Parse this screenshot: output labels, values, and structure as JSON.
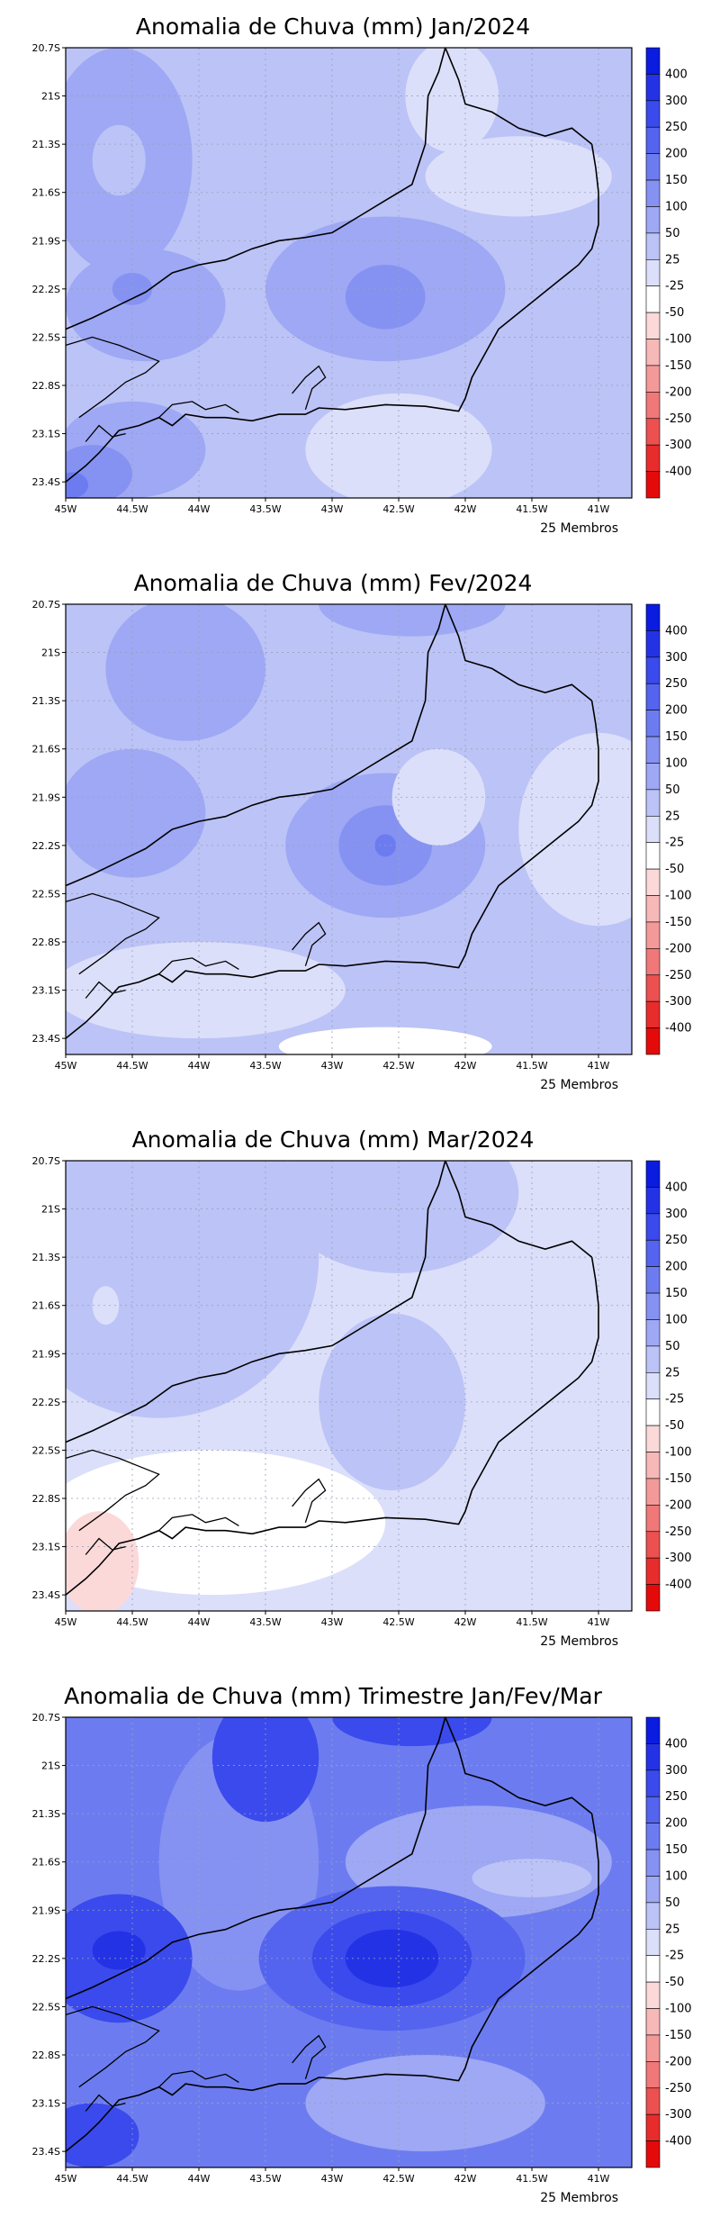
{
  "colorbar": {
    "labels": [
      "400",
      "300",
      "250",
      "200",
      "150",
      "100",
      "50",
      "25",
      "-25",
      "-50",
      "-100",
      "-150",
      "-200",
      "-250",
      "-300",
      "-400"
    ],
    "colors": [
      "#0a1ce0",
      "#2432e6",
      "#3a4aec",
      "#5464ef",
      "#6c7cf0",
      "#8592f2",
      "#9ea8f4",
      "#bcc3f6",
      "#dcdffa",
      "#ffffff",
      "#fcd9d9",
      "#f7b8b8",
      "#f49999",
      "#f07878",
      "#ec5050",
      "#e82c2c",
      "#e40a0a"
    ]
  },
  "axes": {
    "lon_labels": [
      "45W",
      "44.5W",
      "44W",
      "43.5W",
      "43W",
      "42.5W",
      "42W",
      "41.5W",
      "41W"
    ],
    "lat_labels": [
      "20.7S",
      "21S",
      "21.3S",
      "21.6S",
      "21.9S",
      "22.2S",
      "22.5S",
      "22.8S",
      "23.1S",
      "23.4S"
    ]
  },
  "panels": [
    {
      "title": "Anomalia de Chuva (mm) Jan/2024",
      "members": "25 Membros",
      "base_color": "#bcc3f6",
      "blobs": [
        {
          "lon": -44.6,
          "lat": -21.4,
          "rx": 0.55,
          "ry": 0.7,
          "color": "#9ea8f4"
        },
        {
          "lon": -44.6,
          "lat": -21.4,
          "rx": 0.2,
          "ry": 0.22,
          "color": "#bcc3f6"
        },
        {
          "lon": -44.4,
          "lat": -22.3,
          "rx": 0.6,
          "ry": 0.35,
          "color": "#9ea8f4"
        },
        {
          "lon": -44.5,
          "lat": -22.2,
          "rx": 0.15,
          "ry": 0.1,
          "color": "#8592f2"
        },
        {
          "lon": -42.6,
          "lat": -22.2,
          "rx": 0.9,
          "ry": 0.45,
          "color": "#9ea8f4"
        },
        {
          "lon": -42.6,
          "lat": -22.25,
          "rx": 0.3,
          "ry": 0.2,
          "color": "#8592f2"
        },
        {
          "lon": -41.6,
          "lat": -21.5,
          "rx": 0.7,
          "ry": 0.25,
          "color": "#dcdffa"
        },
        {
          "lon": -42.1,
          "lat": -21.0,
          "rx": 0.35,
          "ry": 0.35,
          "color": "#dcdffa"
        },
        {
          "lon": -44.5,
          "lat": -23.2,
          "rx": 0.55,
          "ry": 0.3,
          "color": "#9ea8f4"
        },
        {
          "lon": -44.8,
          "lat": -23.35,
          "rx": 0.3,
          "ry": 0.18,
          "color": "#8592f2"
        },
        {
          "lon": -44.95,
          "lat": -23.42,
          "rx": 0.12,
          "ry": 0.08,
          "color": "#6c7cf0"
        },
        {
          "lon": -42.5,
          "lat": -23.2,
          "rx": 0.7,
          "ry": 0.35,
          "color": "#dcdffa"
        }
      ]
    },
    {
      "title": "Anomalia de Chuva (mm) Fev/2024",
      "members": "25 Membros",
      "base_color": "#bcc3f6",
      "blobs": [
        {
          "lon": -44.5,
          "lat": -22.0,
          "rx": 0.55,
          "ry": 0.4,
          "color": "#9ea8f4"
        },
        {
          "lon": -42.6,
          "lat": -22.2,
          "rx": 0.75,
          "ry": 0.45,
          "color": "#9ea8f4"
        },
        {
          "lon": -42.6,
          "lat": -22.2,
          "rx": 0.35,
          "ry": 0.25,
          "color": "#8592f2"
        },
        {
          "lon": -42.6,
          "lat": -22.2,
          "rx": 0.08,
          "ry": 0.07,
          "color": "#6c7cf0"
        },
        {
          "lon": -44.1,
          "lat": -21.1,
          "rx": 0.6,
          "ry": 0.45,
          "color": "#9ea8f4"
        },
        {
          "lon": -42.4,
          "lat": -20.7,
          "rx": 0.7,
          "ry": 0.2,
          "color": "#9ea8f4"
        },
        {
          "lon": -42.2,
          "lat": -21.9,
          "rx": 0.35,
          "ry": 0.3,
          "color": "#dcdffa"
        },
        {
          "lon": -41.0,
          "lat": -22.1,
          "rx": 0.6,
          "ry": 0.6,
          "color": "#dcdffa"
        },
        {
          "lon": -44.0,
          "lat": -23.1,
          "rx": 1.1,
          "ry": 0.3,
          "color": "#dcdffa"
        },
        {
          "lon": -42.6,
          "lat": -23.45,
          "rx": 0.8,
          "ry": 0.12,
          "color": "#ffffff"
        }
      ]
    },
    {
      "title": "Anomalia de Chuva (mm) Mar/2024",
      "members": "25 Membros",
      "base_color": "#dcdffa",
      "blobs": [
        {
          "lon": -44.3,
          "lat": -21.3,
          "rx": 1.2,
          "ry": 1.0,
          "color": "#bcc3f6"
        },
        {
          "lon": -42.5,
          "lat": -20.9,
          "rx": 0.9,
          "ry": 0.5,
          "color": "#bcc3f6"
        },
        {
          "lon": -42.55,
          "lat": -22.2,
          "rx": 0.55,
          "ry": 0.55,
          "color": "#bcc3f6"
        },
        {
          "lon": -44.7,
          "lat": -21.6,
          "rx": 0.1,
          "ry": 0.12,
          "color": "#dcdffa"
        },
        {
          "lon": -43.9,
          "lat": -22.95,
          "rx": 1.3,
          "ry": 0.45,
          "color": "#ffffff"
        },
        {
          "lon": -44.75,
          "lat": -23.2,
          "rx": 0.3,
          "ry": 0.32,
          "color": "#fcd9d9"
        }
      ]
    },
    {
      "title": "Anomalia de Chuva (mm) Trimestre Jan/Fev/Mar",
      "members": "25 Membros",
      "base_color": "#6c7cf0",
      "blobs": [
        {
          "lon": -43.7,
          "lat": -21.6,
          "rx": 0.6,
          "ry": 0.8,
          "color": "#8592f2"
        },
        {
          "lon": -41.9,
          "lat": -21.6,
          "rx": 1.0,
          "ry": 0.35,
          "color": "#9ea8f4"
        },
        {
          "lon": -41.5,
          "lat": -21.7,
          "rx": 0.45,
          "ry": 0.12,
          "color": "#bcc3f6"
        },
        {
          "lon": -42.3,
          "lat": -23.1,
          "rx": 0.9,
          "ry": 0.3,
          "color": "#9ea8f4"
        },
        {
          "lon": -43.5,
          "lat": -20.95,
          "rx": 0.4,
          "ry": 0.4,
          "color": "#3a4aec"
        },
        {
          "lon": -42.4,
          "lat": -20.7,
          "rx": 0.6,
          "ry": 0.18,
          "color": "#3a4aec"
        },
        {
          "lon": -42.55,
          "lat": -22.2,
          "rx": 1.0,
          "ry": 0.45,
          "color": "#5464ef"
        },
        {
          "lon": -42.55,
          "lat": -22.2,
          "rx": 0.6,
          "ry": 0.3,
          "color": "#3a4aec"
        },
        {
          "lon": -42.55,
          "lat": -22.2,
          "rx": 0.35,
          "ry": 0.18,
          "color": "#2432e6"
        },
        {
          "lon": -44.6,
          "lat": -22.2,
          "rx": 0.55,
          "ry": 0.4,
          "color": "#3a4aec"
        },
        {
          "lon": -44.6,
          "lat": -22.15,
          "rx": 0.2,
          "ry": 0.12,
          "color": "#2432e6"
        },
        {
          "lon": -44.8,
          "lat": -23.3,
          "rx": 0.35,
          "ry": 0.2,
          "color": "#3a4aec"
        }
      ]
    }
  ]
}
